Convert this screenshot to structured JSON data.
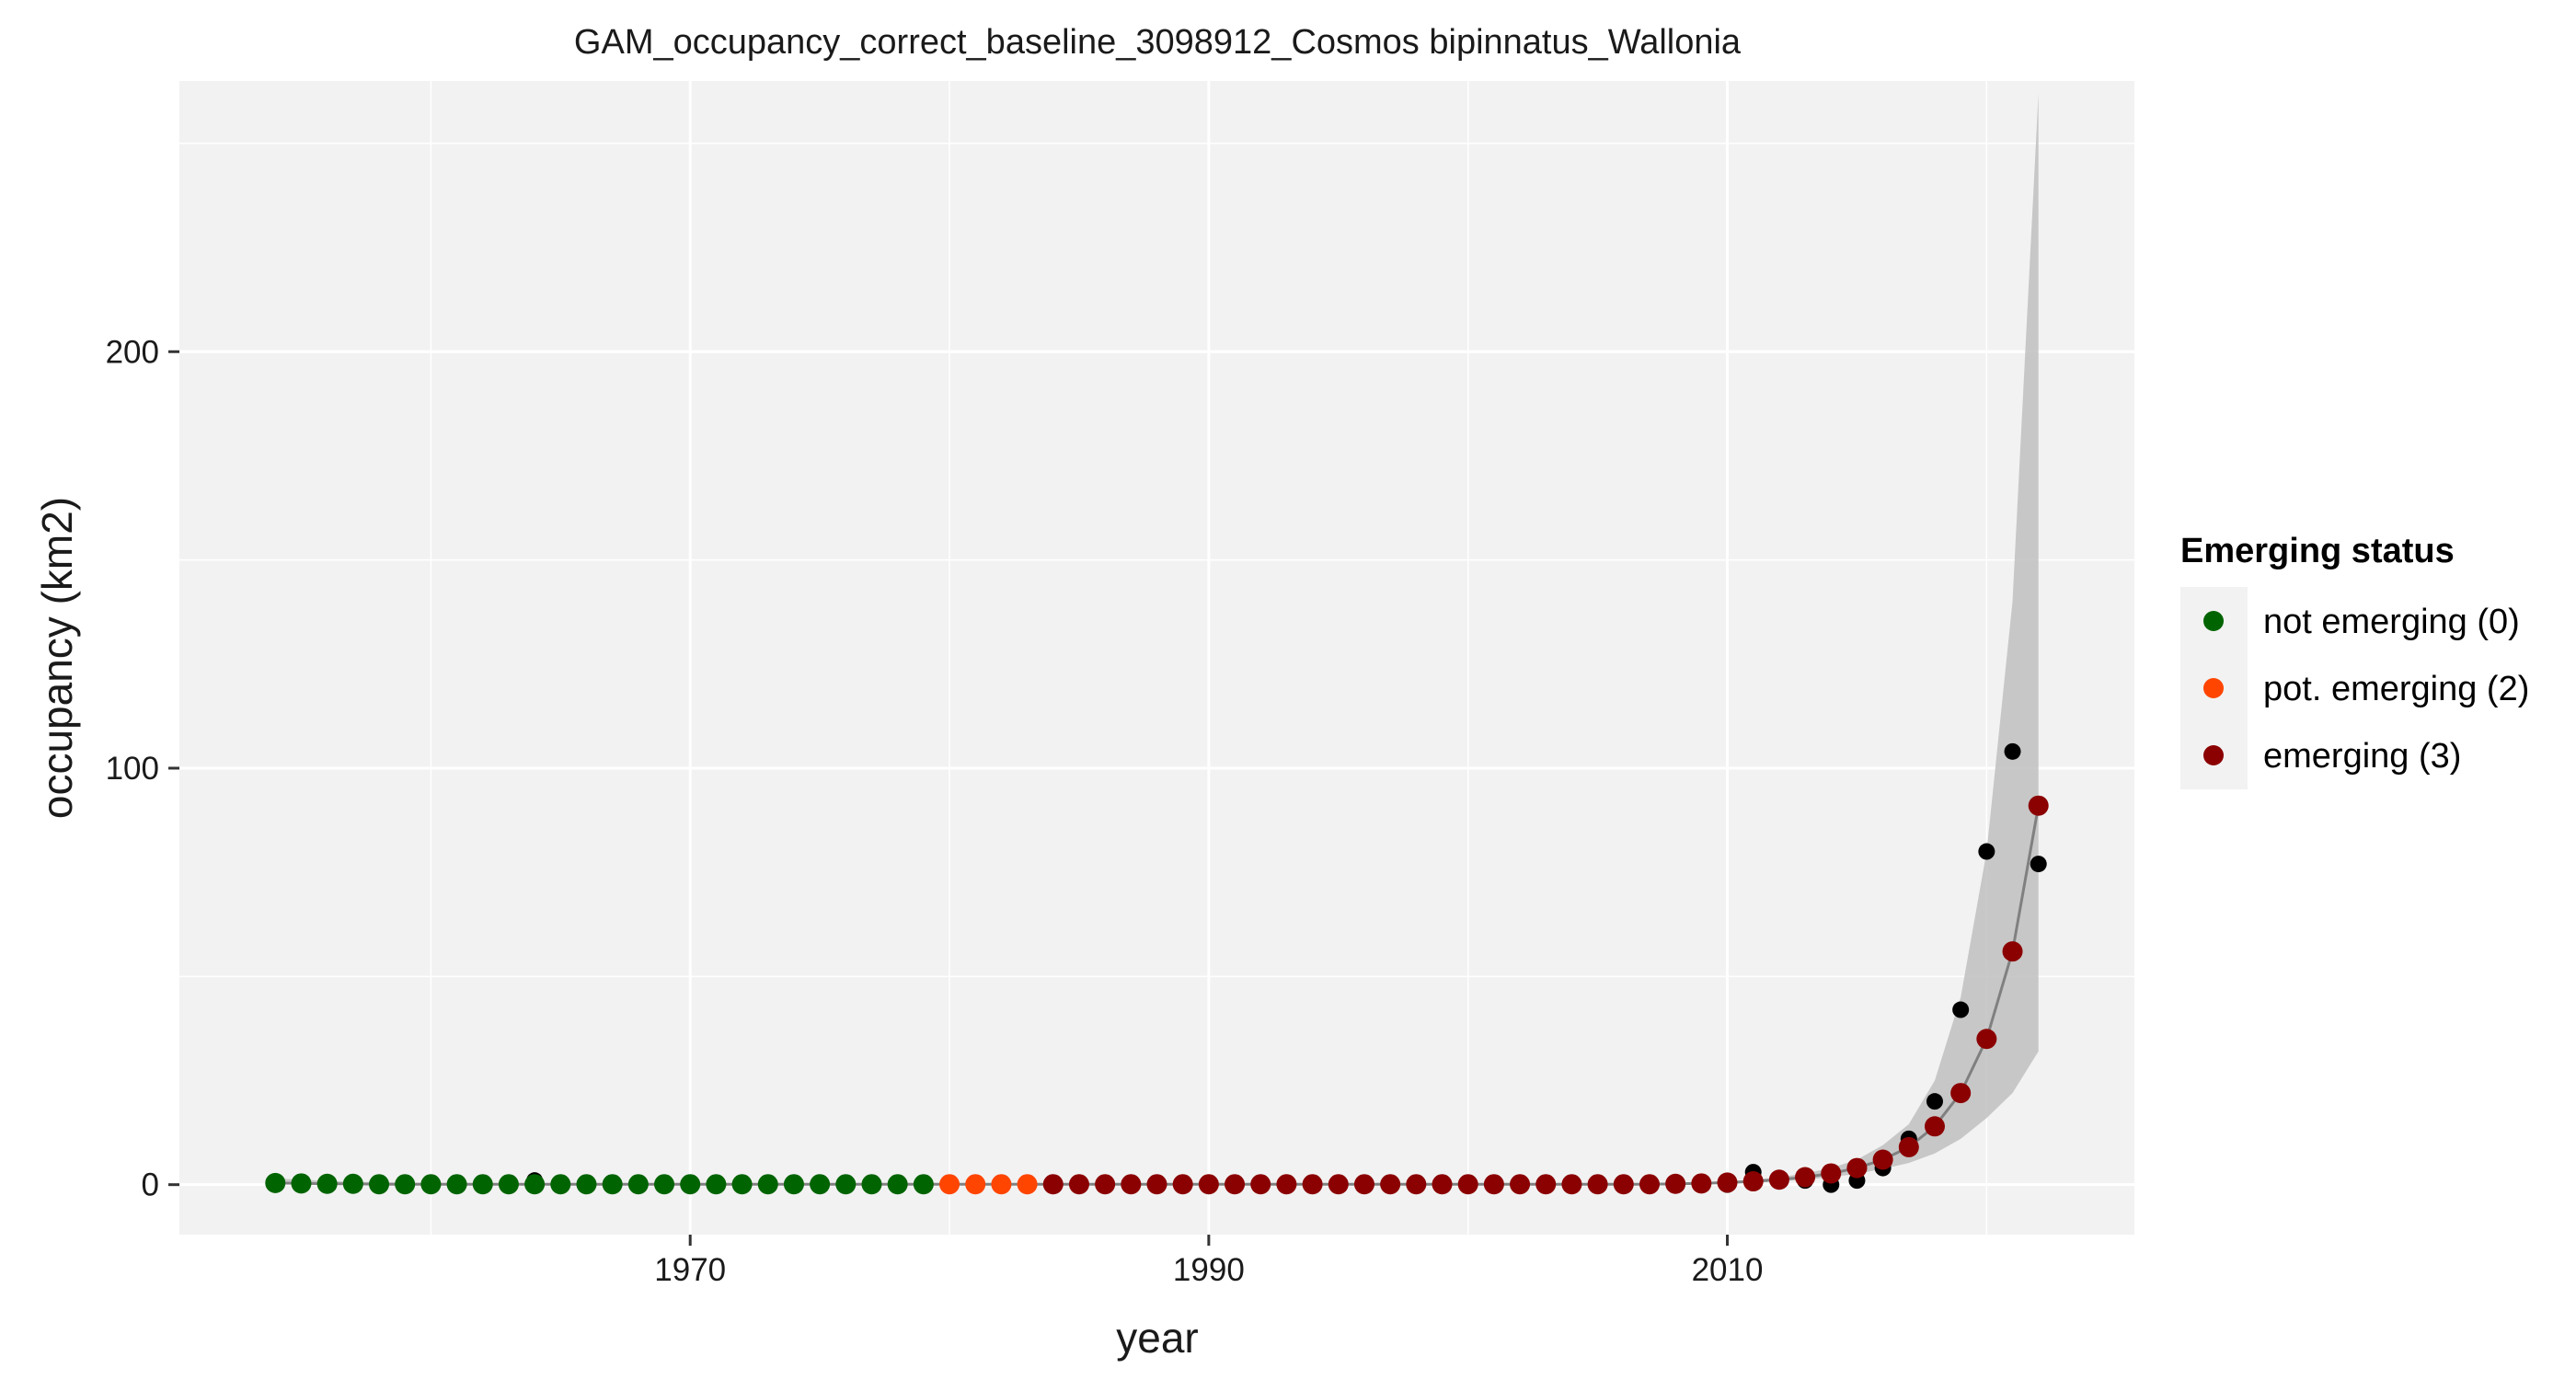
{
  "chart_data": {
    "type": "scatter",
    "title": "GAM_occupancy_correct_baseline_3098912_Cosmos bipinnatus_Wallonia",
    "xlabel": "year",
    "ylabel": "occupancy (km2)",
    "xlim": [
      1950.3,
      2025.7
    ],
    "ylim": [
      -12,
      265
    ],
    "xticks": [
      1970,
      1990,
      2010
    ],
    "yticks": [
      0,
      100,
      200
    ],
    "x_minor_ticks": [
      1960,
      1980,
      2000,
      2020
    ],
    "y_minor_ticks": [
      50,
      150,
      250
    ],
    "grid": true,
    "panel_background": "#f2f2f2",
    "grid_color": "#ffffff",
    "observed_color": "#000000",
    "fit_line_color": "#808080",
    "ribbon_color": "#bfbfbf",
    "legend": {
      "title": "Emerging status",
      "position": "right",
      "entries": [
        {
          "label": "not emerging (0)",
          "color": "#006400"
        },
        {
          "label": "pot. emerging (2)",
          "color": "#ff4500"
        },
        {
          "label": "emerging (3)",
          "color": "#8b0000"
        }
      ]
    },
    "observed": {
      "x": [
        1954,
        1955,
        1956,
        1957,
        1958,
        1959,
        1960,
        1961,
        1962,
        1963,
        1964,
        1965,
        1966,
        1967,
        1968,
        1969,
        1970,
        1971,
        1972,
        1973,
        1974,
        1975,
        1976,
        1977,
        1978,
        1979,
        1980,
        1981,
        1982,
        1983,
        1984,
        1985,
        1986,
        1987,
        1988,
        1989,
        1990,
        1991,
        1992,
        1993,
        1994,
        1995,
        1996,
        1997,
        1998,
        1999,
        2000,
        2001,
        2002,
        2003,
        2004,
        2005,
        2006,
        2007,
        2008,
        2009,
        2010,
        2011,
        2012,
        2013,
        2014,
        2015,
        2016,
        2017,
        2018,
        2019,
        2020,
        2021,
        2022
      ],
      "y": [
        0,
        0,
        0,
        0,
        0,
        0,
        0,
        0,
        0,
        0,
        1,
        0,
        0,
        0,
        0,
        0,
        0,
        0,
        0,
        0,
        0,
        0,
        0,
        0,
        0,
        0,
        0,
        0,
        0,
        0,
        0,
        0,
        0,
        0,
        0,
        0,
        0,
        0,
        0,
        0,
        0,
        0,
        0,
        0,
        0,
        0,
        0,
        0,
        0,
        0,
        0,
        0,
        0,
        0,
        0,
        0,
        0,
        3,
        1,
        1,
        0,
        1,
        4,
        11,
        20,
        42,
        80,
        104,
        77
      ]
    },
    "fit": {
      "x": [
        1954,
        1955,
        1956,
        1957,
        1958,
        1959,
        1960,
        1961,
        1962,
        1963,
        1964,
        1965,
        1966,
        1967,
        1968,
        1969,
        1970,
        1971,
        1972,
        1973,
        1974,
        1975,
        1976,
        1977,
        1978,
        1979,
        1980,
        1981,
        1982,
        1983,
        1984,
        1985,
        1986,
        1987,
        1988,
        1989,
        1990,
        1991,
        1992,
        1993,
        1994,
        1995,
        1996,
        1997,
        1998,
        1999,
        2000,
        2001,
        2002,
        2003,
        2004,
        2005,
        2006,
        2007,
        2008,
        2009,
        2010,
        2011,
        2012,
        2013,
        2014,
        2015,
        2016,
        2017,
        2018,
        2019,
        2020,
        2021,
        2022
      ],
      "y": [
        0.4,
        0.3,
        0.2,
        0.2,
        0.1,
        0.1,
        0.1,
        0.1,
        0.1,
        0.1,
        0.1,
        0.1,
        0.1,
        0.1,
        0.1,
        0.1,
        0.1,
        0.1,
        0.1,
        0.1,
        0.1,
        0.1,
        0.1,
        0.1,
        0.1,
        0.1,
        0.1,
        0.1,
        0.1,
        0.1,
        0.1,
        0.1,
        0.1,
        0.1,
        0.1,
        0.1,
        0.1,
        0.1,
        0.1,
        0.1,
        0.1,
        0.1,
        0.1,
        0.1,
        0.1,
        0.1,
        0.1,
        0.1,
        0.1,
        0.1,
        0.1,
        0.1,
        0.1,
        0.1,
        0.2,
        0.3,
        0.5,
        0.8,
        1.2,
        1.8,
        2.7,
        4.0,
        6.0,
        9.0,
        14.0,
        22.0,
        35.0,
        56.0,
        91.0
      ],
      "status": [
        0,
        0,
        0,
        0,
        0,
        0,
        0,
        0,
        0,
        0,
        0,
        0,
        0,
        0,
        0,
        0,
        0,
        0,
        0,
        0,
        0,
        0,
        0,
        0,
        0,
        0,
        2,
        2,
        2,
        2,
        3,
        3,
        3,
        3,
        3,
        3,
        3,
        3,
        3,
        3,
        3,
        3,
        3,
        3,
        3,
        3,
        3,
        3,
        3,
        3,
        3,
        3,
        3,
        3,
        3,
        3,
        3,
        3,
        3,
        3,
        3,
        3,
        3,
        3,
        3,
        3,
        3,
        3,
        3
      ],
      "lower": [
        0.1,
        0.1,
        0.1,
        0.1,
        0.1,
        0.1,
        0.1,
        0.1,
        0.1,
        0.1,
        0.1,
        0.1,
        0.1,
        0.1,
        0.1,
        0.1,
        0.1,
        0.1,
        0.1,
        0.1,
        0.1,
        0.1,
        0.1,
        0.1,
        0.1,
        0.1,
        0.1,
        0.1,
        0.1,
        0.1,
        0.1,
        0.1,
        0.1,
        0.1,
        0.1,
        0.1,
        0.1,
        0.1,
        0.1,
        0.1,
        0.1,
        0.1,
        0.1,
        0.1,
        0.1,
        0.1,
        0.1,
        0.1,
        0.1,
        0.1,
        0.1,
        0.1,
        0.1,
        0.1,
        0.1,
        0.2,
        0.3,
        0.5,
        0.8,
        1.2,
        1.8,
        2.6,
        3.8,
        5.2,
        7.5,
        11.0,
        16.0,
        22.0,
        32.0
      ],
      "upper": [
        1.5,
        1.2,
        0.9,
        0.7,
        0.6,
        0.5,
        0.4,
        0.4,
        0.3,
        0.3,
        0.3,
        0.3,
        0.3,
        0.3,
        0.3,
        0.3,
        0.3,
        0.3,
        0.3,
        0.3,
        0.3,
        0.3,
        0.3,
        0.3,
        0.3,
        0.3,
        0.3,
        0.3,
        0.3,
        0.3,
        0.3,
        0.3,
        0.3,
        0.3,
        0.3,
        0.3,
        0.3,
        0.3,
        0.3,
        0.3,
        0.3,
        0.3,
        0.3,
        0.3,
        0.3,
        0.3,
        0.3,
        0.3,
        0.3,
        0.3,
        0.3,
        0.3,
        0.3,
        0.3,
        0.4,
        0.5,
        0.8,
        1.2,
        1.8,
        2.7,
        4.0,
        6.0,
        9.5,
        14.5,
        25.0,
        45.0,
        80.0,
        140.0,
        262.0
      ]
    }
  }
}
